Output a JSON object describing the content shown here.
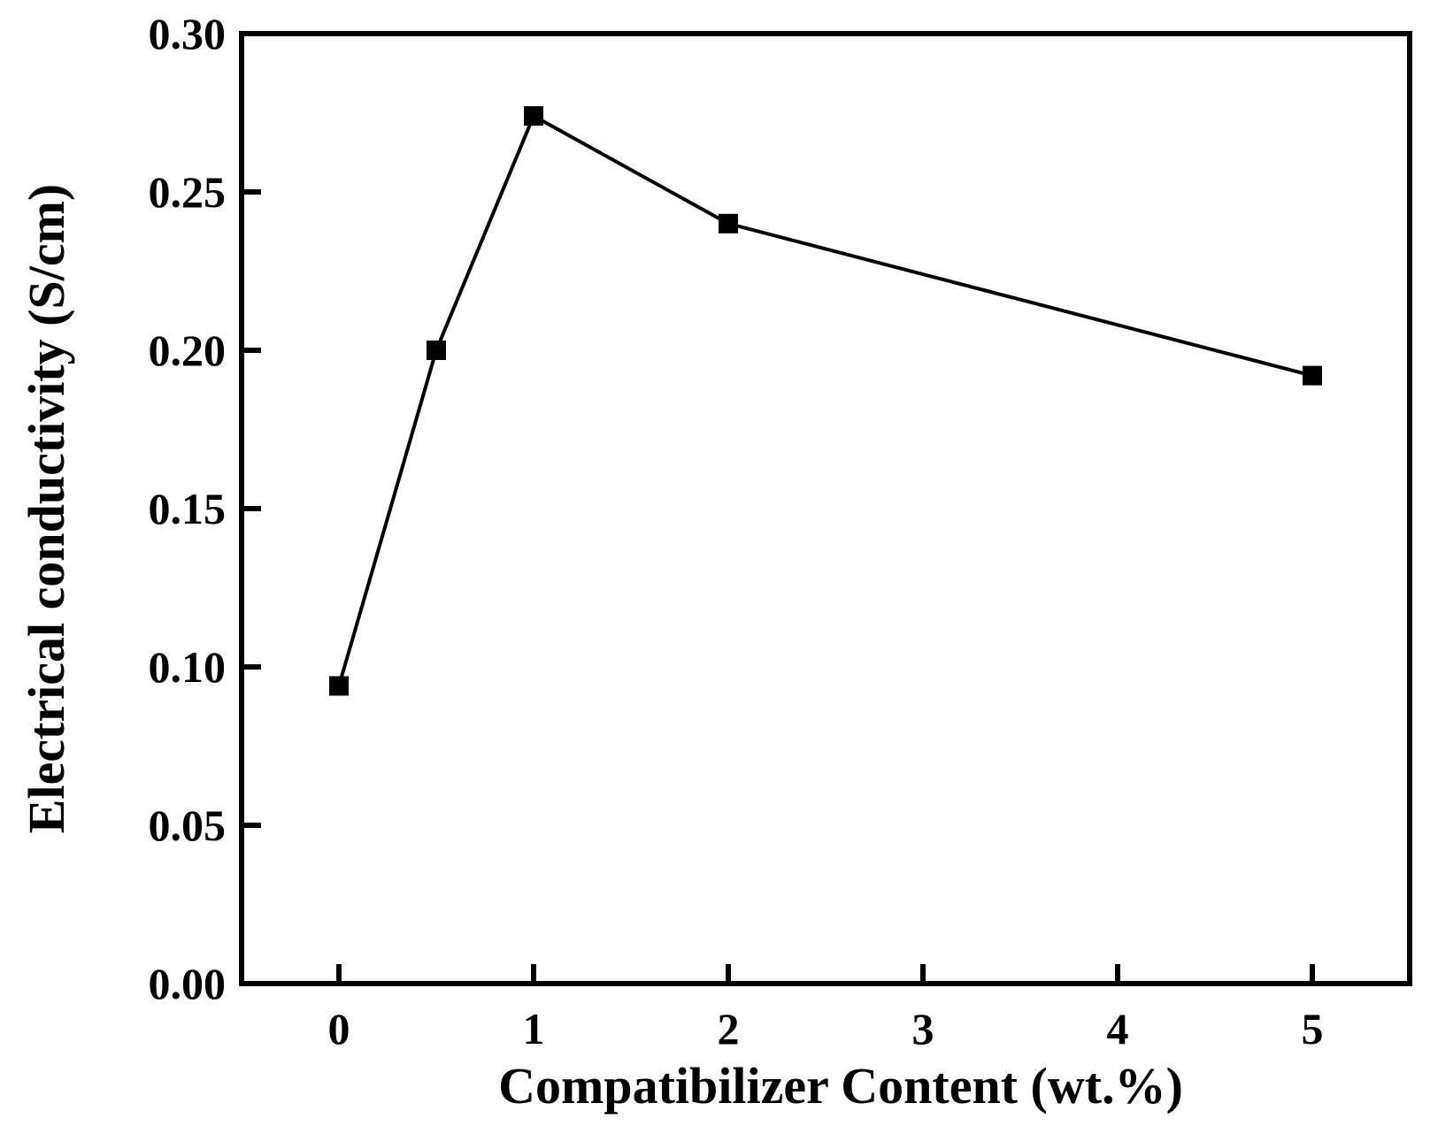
{
  "chart_data": {
    "type": "line",
    "title": "",
    "xlabel": "Compatibilizer Content (wt.%)",
    "ylabel": "Electrical conductivity (S/cm)",
    "xlim": [
      -0.5,
      5.5
    ],
    "ylim": [
      0,
      0.3
    ],
    "x_ticks": [
      0,
      1,
      2,
      3,
      4,
      5
    ],
    "x_tick_labels": [
      "0",
      "1",
      "2",
      "3",
      "4",
      "5"
    ],
    "y_ticks": [
      0,
      0.05,
      0.1,
      0.15,
      0.2,
      0.25,
      0.3
    ],
    "y_tick_labels": [
      "0.00",
      "0.05",
      "0.10",
      "0.15",
      "0.20",
      "0.25",
      "0.30"
    ],
    "grid": false,
    "legend": "none",
    "series": [
      {
        "marker": "square",
        "color": "#000000",
        "points": [
          {
            "x": 0,
            "y": 0.094
          },
          {
            "x": 0.5,
            "y": 0.2
          },
          {
            "x": 1,
            "y": 0.274
          },
          {
            "x": 2,
            "y": 0.24
          },
          {
            "x": 5,
            "y": 0.192
          }
        ]
      }
    ]
  }
}
